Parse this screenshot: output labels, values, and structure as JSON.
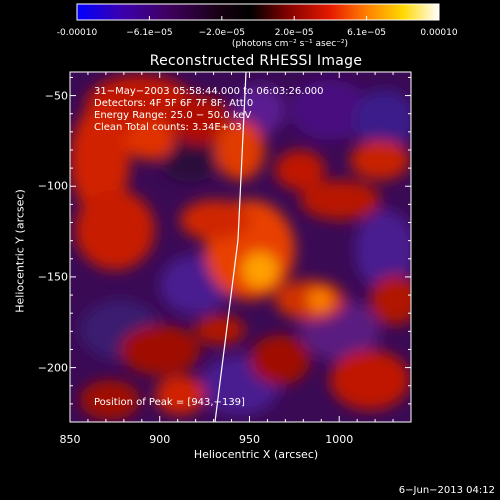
{
  "colorbar": {
    "tick_labels": [
      "-0.00010",
      "−6.1e−05",
      "−2.0e−05",
      "2.0e−05",
      "6.1e−05",
      "0.00010"
    ],
    "units": "(photons cm⁻² s⁻¹ asec⁻²)",
    "colors": [
      "#0000ff",
      "#3a00b0",
      "#400060",
      "#200018",
      "#000000",
      "#7a0000",
      "#e01800",
      "#ff7a00",
      "#ffd000",
      "#ffffe0",
      "#ffffff"
    ]
  },
  "title": "Reconstructed RHESSI Image",
  "info": {
    "line1": "31−May−2003 05:58:44.000 to 06:03:26.000",
    "line2": "Detectors: 4F 5F 6F 7F 8F; Att 0",
    "line3": "Energy Range: 25.0 − 50.0 keV",
    "line4": "Clean     Total counts: 3.34E+03"
  },
  "axes": {
    "xlabel": "Heliocentric X (arcsec)",
    "ylabel": "Heliocentric Y (arcsec)",
    "x_ticks": [
      "850",
      "900",
      "950",
      "1000"
    ],
    "y_ticks": [
      "−50",
      "−100",
      "−150",
      "−200"
    ],
    "xlim": [
      850,
      1040
    ],
    "ylim": [
      -230,
      -37
    ]
  },
  "peak": "Position of Peak = [943,−139]",
  "date_stamp": "6−Jun−2013 04:12"
}
